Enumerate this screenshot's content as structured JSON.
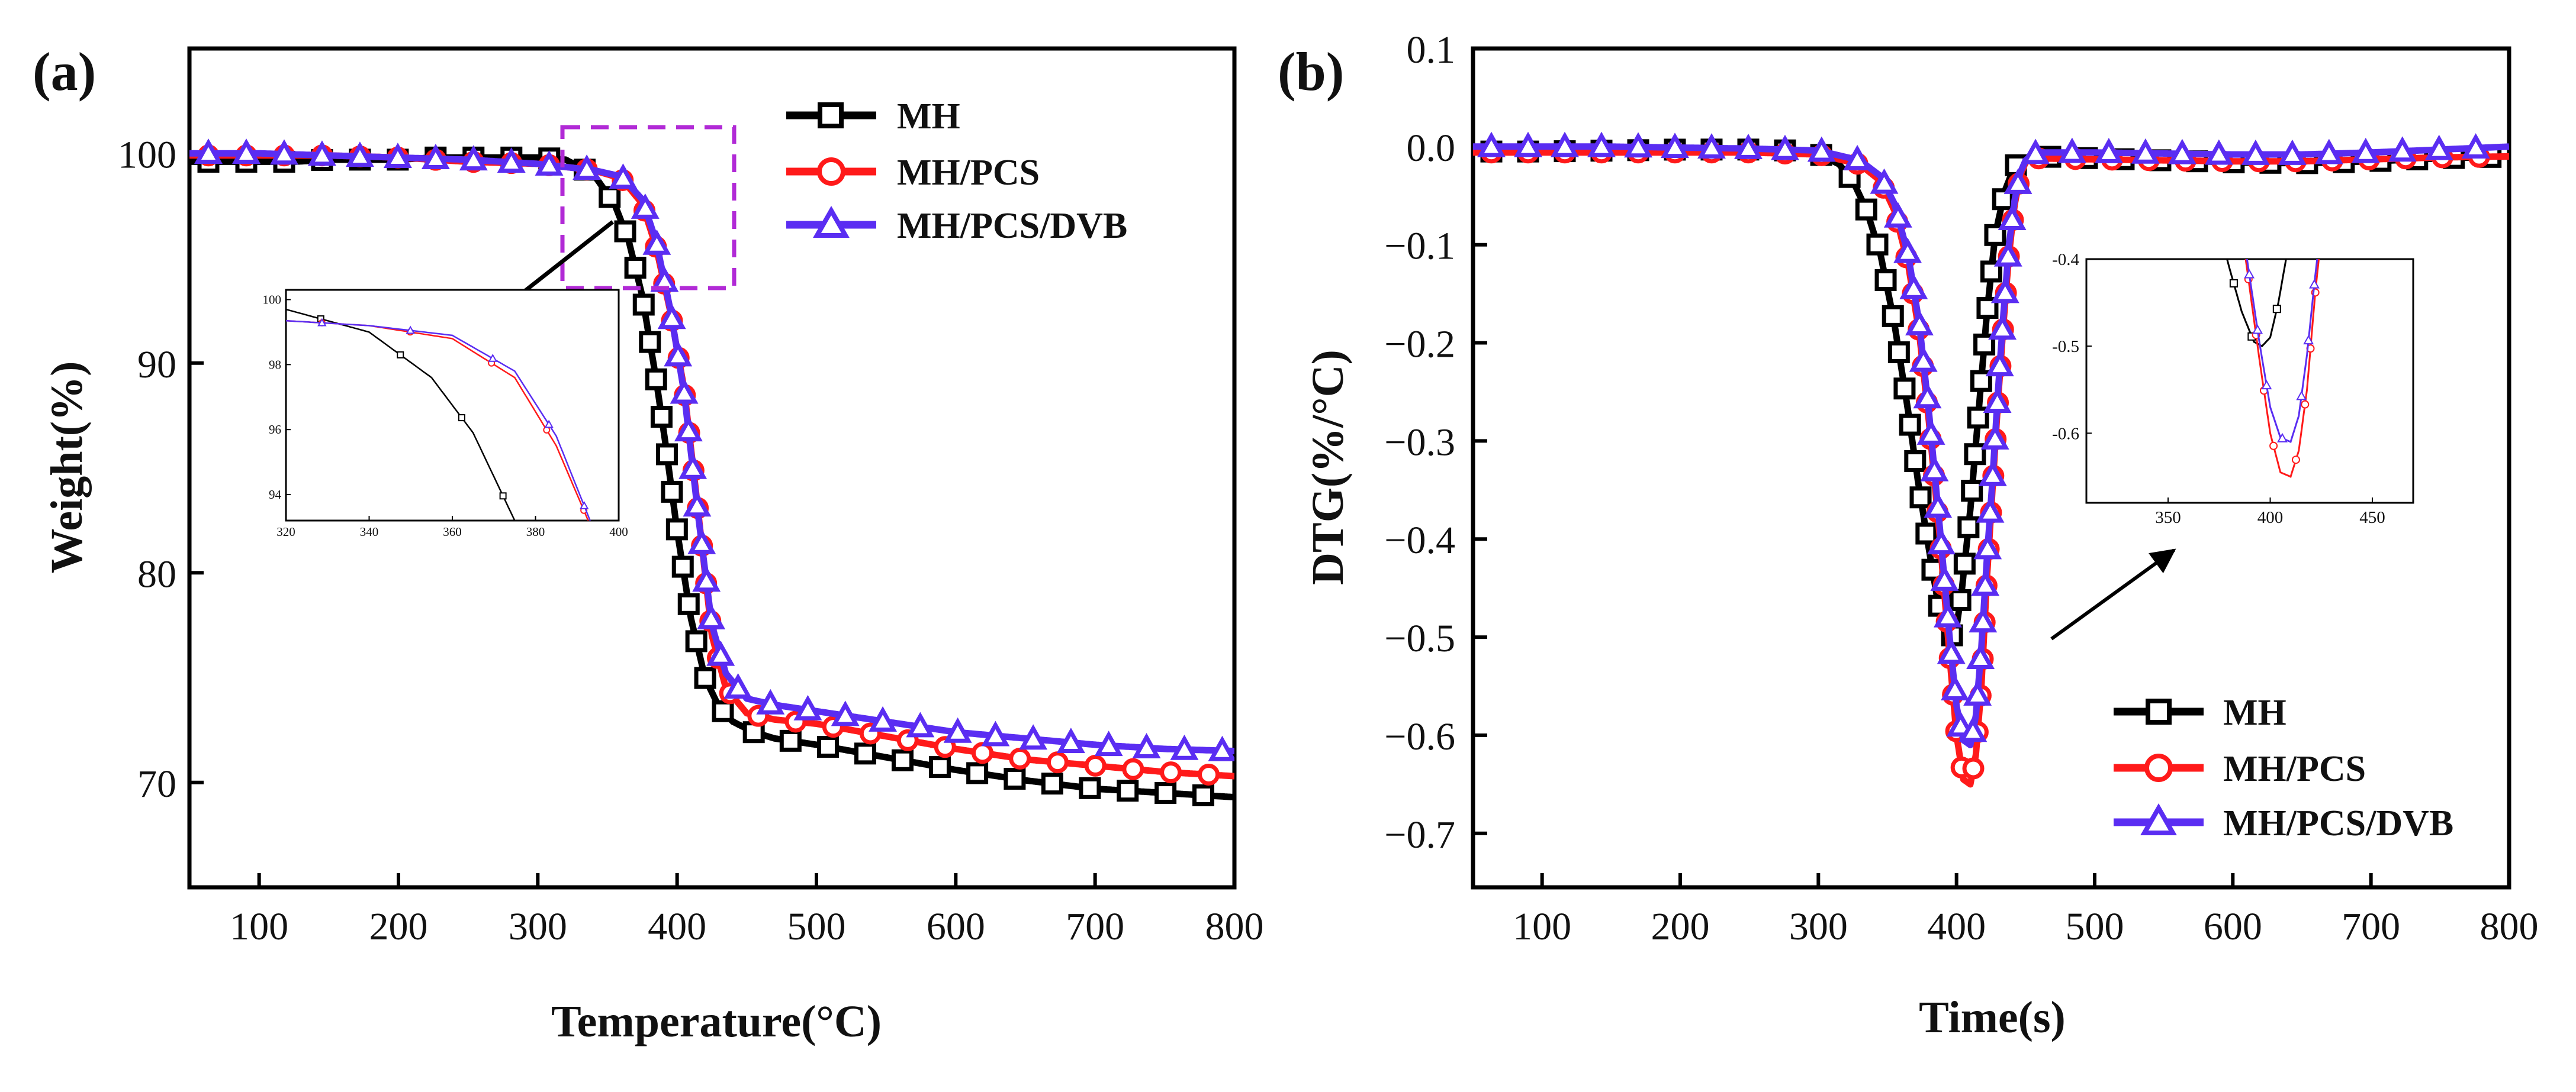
{
  "figure": {
    "panel_a_label": "(a)",
    "panel_b_label": "(b)"
  },
  "colors": {
    "MH": "#000000",
    "MH/PCS": "#ff1a1a",
    "MH/PCS/DVB": "#5a2df2",
    "zoom_box": "#b12ad6",
    "arrow": "#000000"
  },
  "chart_data": [
    {
      "id": "a",
      "type": "line",
      "xlabel": "Temperature(°C)",
      "ylabel": "Weight(%)",
      "xlim": [
        50,
        800
      ],
      "ylim": [
        65,
        105
      ],
      "xticks": [
        100,
        200,
        300,
        400,
        500,
        600,
        700,
        800
      ],
      "yticks": [
        70,
        80,
        90,
        100
      ],
      "legend": [
        "MH",
        "MH/PCS",
        "MH/PCS/DVB"
      ],
      "series": [
        {
          "name": "MH",
          "marker": "square",
          "x": [
            50,
            75,
            100,
            125,
            150,
            175,
            200,
            225,
            250,
            275,
            300,
            320,
            340,
            355,
            365,
            375,
            385,
            392,
            400,
            410,
            420,
            430,
            440,
            455,
            470,
            500,
            550,
            600,
            650,
            700,
            750,
            800
          ],
          "y": [
            99.6,
            99.6,
            99.6,
            99.6,
            99.7,
            99.7,
            99.7,
            99.8,
            99.8,
            99.8,
            99.8,
            99.7,
            99.0,
            97.6,
            95.9,
            93.2,
            89.2,
            86.0,
            82.0,
            77.8,
            75.0,
            73.6,
            72.9,
            72.4,
            72.1,
            71.8,
            71.2,
            70.6,
            70.1,
            69.7,
            69.5,
            69.3
          ]
        },
        {
          "name": "MH/PCS",
          "marker": "circle",
          "x": [
            50,
            100,
            150,
            200,
            250,
            300,
            340,
            360,
            375,
            385,
            395,
            405,
            415,
            425,
            435,
            450,
            470,
            500,
            550,
            600,
            650,
            700,
            750,
            800
          ],
          "y": [
            99.9,
            99.9,
            99.9,
            99.8,
            99.6,
            99.5,
            99.2,
            98.8,
            97.6,
            95.5,
            92.5,
            88.8,
            83.0,
            77.0,
            74.5,
            73.3,
            73.0,
            72.8,
            72.2,
            71.6,
            71.1,
            70.8,
            70.5,
            70.3
          ]
        },
        {
          "name": "MH/PCS/DVB",
          "marker": "triangle",
          "x": [
            50,
            100,
            150,
            200,
            250,
            300,
            340,
            360,
            375,
            385,
            395,
            405,
            415,
            425,
            435,
            450,
            470,
            500,
            550,
            600,
            650,
            700,
            750,
            800
          ],
          "y": [
            100.0,
            100.0,
            99.9,
            99.8,
            99.7,
            99.5,
            99.2,
            98.9,
            97.8,
            95.8,
            92.6,
            88.6,
            82.8,
            77.5,
            75.2,
            74.0,
            73.7,
            73.4,
            72.9,
            72.4,
            72.1,
            71.8,
            71.6,
            71.5
          ]
        }
      ],
      "inset": {
        "xlim": [
          320,
          400
        ],
        "ylim": [
          93.2,
          100.3
        ],
        "xticks": [
          320,
          340,
          360,
          380,
          400
        ],
        "yticks": [
          94,
          96,
          98,
          100
        ]
      }
    },
    {
      "id": "b",
      "type": "line",
      "xlabel": "Time(s)",
      "ylabel": "DTG(%/°C)",
      "xlim": [
        50,
        800
      ],
      "ylim": [
        -0.755,
        0.1
      ],
      "xticks": [
        100,
        200,
        300,
        400,
        500,
        600,
        700,
        800
      ],
      "yticks": [
        0.1,
        0.0,
        -0.1,
        -0.2,
        -0.3,
        -0.4,
        -0.5,
        -0.6,
        -0.7
      ],
      "ytick_labels": [
        "0.1",
        "0.0",
        "−0.1",
        "−0.2",
        "−0.3",
        "−0.4",
        "−0.5",
        "−0.6",
        "−0.7"
      ],
      "legend": [
        "MH",
        "MH/PCS",
        "MH/PCS/DVB"
      ],
      "series": [
        {
          "name": "MH",
          "marker": "square",
          "x": [
            50,
            100,
            150,
            200,
            250,
            280,
            300,
            315,
            325,
            335,
            345,
            355,
            365,
            372,
            380,
            386,
            392,
            396,
            400,
            404,
            410,
            416,
            422,
            428,
            435,
            442,
            450,
            460,
            500,
            550,
            600,
            650,
            700,
            750,
            800
          ],
          "y": [
            -0.005,
            -0.005,
            -0.004,
            -0.003,
            -0.003,
            -0.004,
            -0.007,
            -0.018,
            -0.035,
            -0.065,
            -0.11,
            -0.18,
            -0.27,
            -0.34,
            -0.41,
            -0.46,
            -0.495,
            -0.5,
            -0.49,
            -0.45,
            -0.37,
            -0.27,
            -0.17,
            -0.09,
            -0.045,
            -0.02,
            -0.012,
            -0.01,
            -0.012,
            -0.014,
            -0.016,
            -0.017,
            -0.015,
            -0.012,
            -0.01
          ]
        },
        {
          "name": "MH/PCS",
          "marker": "circle",
          "x": [
            50,
            100,
            150,
            200,
            250,
            300,
            330,
            345,
            355,
            365,
            373,
            380,
            388,
            395,
            400,
            405,
            410,
            414,
            418,
            422,
            426,
            430,
            434,
            438,
            442,
            446,
            450,
            455,
            460,
            500,
            550,
            600,
            650,
            700,
            750,
            800
          ],
          "y": [
            -0.006,
            -0.006,
            -0.006,
            -0.006,
            -0.006,
            -0.008,
            -0.018,
            -0.035,
            -0.065,
            -0.12,
            -0.19,
            -0.28,
            -0.4,
            -0.52,
            -0.6,
            -0.645,
            -0.65,
            -0.62,
            -0.55,
            -0.44,
            -0.35,
            -0.26,
            -0.18,
            -0.11,
            -0.06,
            -0.03,
            -0.016,
            -0.012,
            -0.012,
            -0.013,
            -0.014,
            -0.015,
            -0.015,
            -0.013,
            -0.011,
            -0.01
          ]
        },
        {
          "name": "MH/PCS/DVB",
          "marker": "triangle",
          "x": [
            50,
            100,
            150,
            200,
            250,
            300,
            330,
            345,
            355,
            365,
            373,
            380,
            388,
            395,
            400,
            405,
            410,
            414,
            418,
            422,
            426,
            430,
            434,
            438,
            442,
            446,
            450,
            455,
            460,
            500,
            550,
            600,
            650,
            700,
            750,
            800
          ],
          "y": [
            0.0,
            0.0,
            0.0,
            -0.001,
            -0.002,
            -0.004,
            -0.014,
            -0.03,
            -0.058,
            -0.11,
            -0.18,
            -0.27,
            -0.39,
            -0.5,
            -0.57,
            -0.605,
            -0.61,
            -0.58,
            -0.51,
            -0.42,
            -0.34,
            -0.25,
            -0.17,
            -0.1,
            -0.055,
            -0.027,
            -0.014,
            -0.008,
            -0.006,
            -0.006,
            -0.007,
            -0.008,
            -0.008,
            -0.006,
            -0.003,
            0.0
          ]
        }
      ],
      "inset": {
        "xlim": [
          310,
          470
        ],
        "ylim": [
          -0.68,
          -0.4
        ],
        "xticks": [
          350,
          400,
          450
        ],
        "yticks": [
          -0.4,
          -0.5,
          -0.6
        ],
        "ytick_labels": [
          "-0.4",
          "-0.5",
          "-0.6"
        ]
      }
    }
  ]
}
